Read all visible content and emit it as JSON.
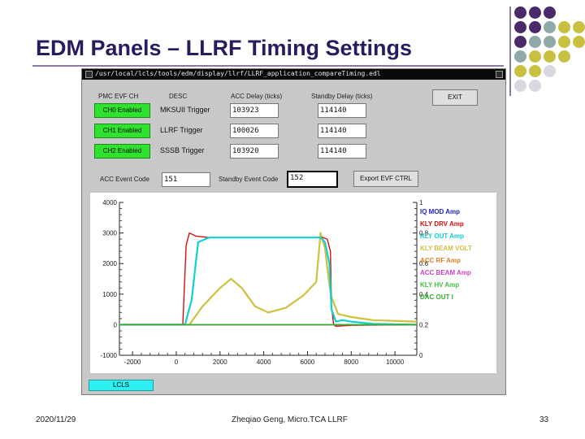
{
  "slide": {
    "title": "EDM Panels – LLRF Timing Settings",
    "footer_date": "2020/11/29",
    "footer_author": "Zheqiao Geng, Micro.TCA LLRF",
    "page_number": "33"
  },
  "window": {
    "title": "/usr/local/lcls/tools/edm/display/llrf/LLRF_application_compareTiming.edl"
  },
  "headers": {
    "pmc_evf_ch": "PMC EVF CH",
    "desc": "DESC",
    "acc_delay": "ACC Delay (ticks)",
    "standby_delay": "Standby Delay (ticks)"
  },
  "channels": [
    {
      "enable_label": "CH0 Enabled",
      "desc": "MKSUII Trigger",
      "acc_delay": "103923",
      "standby_delay": "114140"
    },
    {
      "enable_label": "CH1 Enabled",
      "desc": "LLRF Trigger",
      "acc_delay": "100026",
      "standby_delay": "114140"
    },
    {
      "enable_label": "CH2 Enabled",
      "desc": "SSSB Trigger",
      "acc_delay": "103920",
      "standby_delay": "114140"
    }
  ],
  "event_codes": {
    "acc_label": "ACC Event Code",
    "acc_value": "151",
    "standby_label": "Standby Event Code",
    "standby_value": "152"
  },
  "buttons": {
    "exit": "EXIT",
    "export": "Export EVF CTRL",
    "lcls": "LCLS"
  },
  "chart_data": {
    "type": "line",
    "x_ticks": [
      "-2000",
      "0",
      "2000",
      "4000",
      "6000",
      "8000",
      "10000"
    ],
    "xlim": [
      -2600,
      11000
    ],
    "y_left_ticks": [
      "4000",
      "3000",
      "2000",
      "1000",
      "0",
      "-1000"
    ],
    "ylim_left": [
      -1000,
      4000
    ],
    "y_right_ticks": [
      "1",
      "0.8",
      "0.6",
      "0.4",
      "0.2",
      "0"
    ],
    "ylim_right": [
      0,
      1
    ],
    "legend_placement": "right",
    "series": [
      {
        "name": "IQ MOD Amp",
        "color": "#2020cc",
        "x": [
          -2600,
          11000
        ],
        "y": [
          0,
          0
        ]
      },
      {
        "name": "KLY DRV Amp",
        "color": "#d01010",
        "x": [
          -2600,
          300,
          450,
          600,
          900,
          1500,
          3000,
          5000,
          6300,
          6500,
          6700,
          6900,
          7050,
          7100,
          7200,
          7300,
          8000,
          11000
        ],
        "y": [
          0,
          0,
          2600,
          3000,
          2900,
          2850,
          2850,
          2850,
          2850,
          2850,
          2850,
          2800,
          2400,
          600,
          0,
          -50,
          -20,
          0
        ]
      },
      {
        "name": "KLY OUT Amp",
        "color": "#10d0d0",
        "x": [
          -2600,
          400,
          700,
          1000,
          1500,
          3000,
          5000,
          6300,
          6600,
          6800,
          7000,
          7100,
          7300,
          7600,
          8000,
          9000,
          11000
        ],
        "y": [
          0,
          0,
          800,
          2700,
          2850,
          2850,
          2850,
          2850,
          2850,
          2700,
          2000,
          500,
          100,
          150,
          100,
          30,
          0
        ]
      },
      {
        "name": "KLY BEAM VOLT",
        "color": "#d0c040",
        "x": [
          -2600,
          600,
          1200,
          2000,
          2500,
          3000,
          3600,
          4200,
          5000,
          5800,
          6400,
          6600,
          6800,
          7000,
          7100,
          7400,
          8000,
          9000,
          11000
        ],
        "y": [
          0,
          0,
          600,
          1200,
          1500,
          1200,
          600,
          400,
          550,
          950,
          1400,
          3000,
          2500,
          1300,
          900,
          350,
          250,
          150,
          100
        ]
      },
      {
        "name": "ACC RF Amp",
        "color": "#e08020",
        "x": [
          -2600,
          11000
        ],
        "y": [
          0,
          0
        ]
      },
      {
        "name": "ACC BEAM Amp",
        "color": "#d040c0",
        "x": [
          -2600,
          11000
        ],
        "y": [
          0,
          0
        ]
      },
      {
        "name": "KLY HV Amp",
        "color": "#40c040",
        "x": [
          -2600,
          11000
        ],
        "y": [
          0,
          0
        ]
      },
      {
        "name": "DAC OUT I",
        "color": "#2fb02f",
        "x": [
          -2600,
          11000
        ],
        "y": [
          0,
          0
        ]
      }
    ]
  }
}
